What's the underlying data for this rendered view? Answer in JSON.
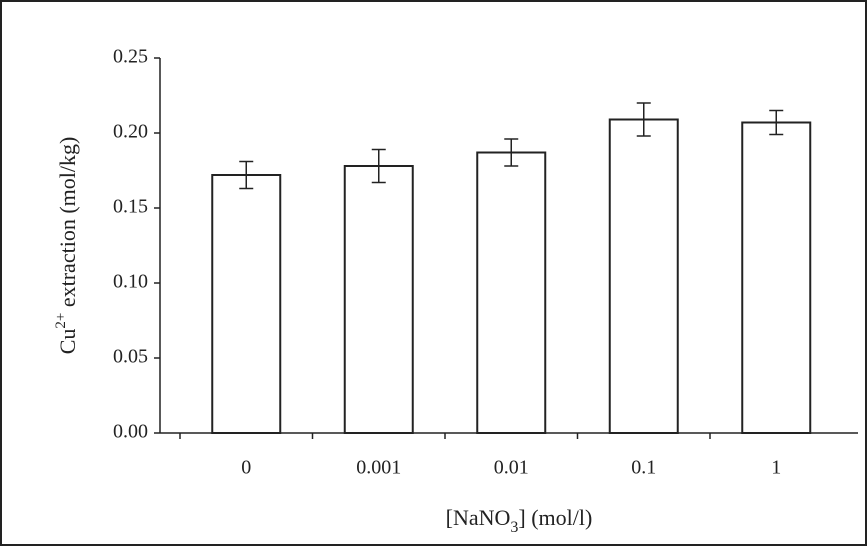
{
  "chart_data": {
    "type": "bar",
    "y_label_parts": [
      "Cu",
      "2+",
      " extraction (mol/kg)"
    ],
    "x_label_parts": [
      "[NaNO",
      "3",
      "] (mol/l)"
    ],
    "categories": [
      "0",
      "0.001",
      "0.01",
      "0.1",
      "1"
    ],
    "values": [
      0.172,
      0.178,
      0.187,
      0.209,
      0.207
    ],
    "errors": [
      0.009,
      0.011,
      0.009,
      0.011,
      0.008
    ],
    "color": "#ffffff",
    "ylim": [
      0,
      0.25
    ],
    "yticks": [
      {
        "value": 0,
        "label": "0.00"
      },
      {
        "value": 0.05,
        "label": "0.05"
      },
      {
        "value": 0.1,
        "label": "0.10"
      },
      {
        "value": 0.15,
        "label": "0.15"
      },
      {
        "value": 0.2,
        "label": "0.20"
      },
      {
        "value": 0.25,
        "label": "0.25"
      }
    ],
    "grid": false
  }
}
